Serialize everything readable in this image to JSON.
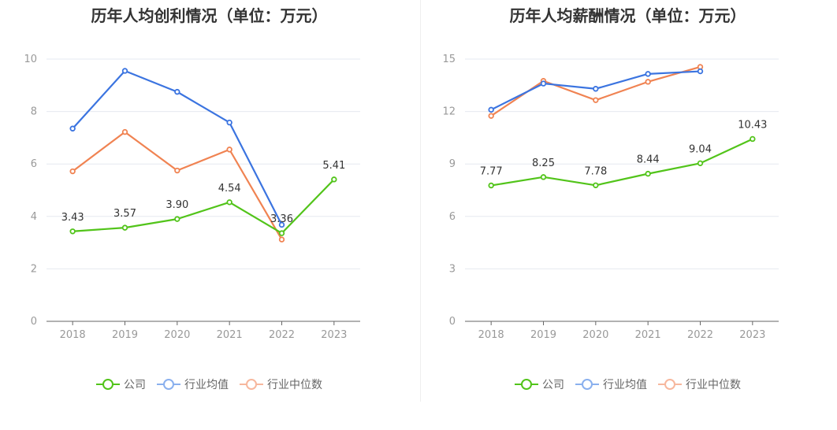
{
  "charts": [
    {
      "title": "历年人均创利情况（单位：万元）",
      "legend": [
        {
          "label": "公司",
          "color": "#52c41a"
        },
        {
          "label": "行业均值",
          "color": "#8ab0ee"
        },
        {
          "label": "行业中位数",
          "color": "#f7b79d"
        }
      ]
    },
    {
      "title": "历年人均薪酬情况（单位：万元）",
      "legend": [
        {
          "label": "公司",
          "color": "#52c41a"
        },
        {
          "label": "行业均值",
          "color": "#8ab0ee"
        },
        {
          "label": "行业中位数",
          "color": "#f7b79d"
        }
      ]
    }
  ],
  "chart_data": [
    {
      "type": "line",
      "title": "历年人均创利情况（单位：万元）",
      "categories": [
        "2018",
        "2019",
        "2020",
        "2021",
        "2022",
        "2023"
      ],
      "ylim": [
        0,
        10
      ],
      "yticks": [
        0,
        2,
        4,
        6,
        8,
        10
      ],
      "grid": true,
      "legend_position": "bottom",
      "series": [
        {
          "name": "公司",
          "color": "#52c41a",
          "values": [
            3.43,
            3.57,
            3.9,
            4.54,
            3.36,
            5.41
          ],
          "labels": [
            "3.43",
            "3.57",
            "3.90",
            "4.54",
            "3.36",
            "5.41"
          ]
        },
        {
          "name": "行业均值",
          "color": "#3b74e0",
          "values": [
            7.35,
            9.55,
            8.75,
            7.58,
            3.68,
            null
          ]
        },
        {
          "name": "行业中位数",
          "color": "#f08352",
          "values": [
            5.72,
            7.22,
            5.75,
            6.55,
            3.12,
            null
          ]
        }
      ]
    },
    {
      "type": "line",
      "title": "历年人均薪酬情况（单位：万元）",
      "categories": [
        "2018",
        "2019",
        "2020",
        "2021",
        "2022",
        "2023"
      ],
      "ylim": [
        0,
        15
      ],
      "yticks": [
        0,
        3,
        6,
        9,
        12,
        15
      ],
      "grid": true,
      "legend_position": "bottom",
      "series": [
        {
          "name": "公司",
          "color": "#52c41a",
          "values": [
            7.77,
            8.25,
            7.78,
            8.44,
            9.04,
            10.43
          ],
          "labels": [
            "7.77",
            "8.25",
            "7.78",
            "8.44",
            "9.04",
            "10.43"
          ]
        },
        {
          "name": "行业均值",
          "color": "#3b74e0",
          "values": [
            12.1,
            13.6,
            13.3,
            14.15,
            14.3,
            null
          ]
        },
        {
          "name": "行业中位数",
          "color": "#f08352",
          "values": [
            11.75,
            13.75,
            12.65,
            13.7,
            14.55,
            null
          ]
        }
      ]
    }
  ]
}
